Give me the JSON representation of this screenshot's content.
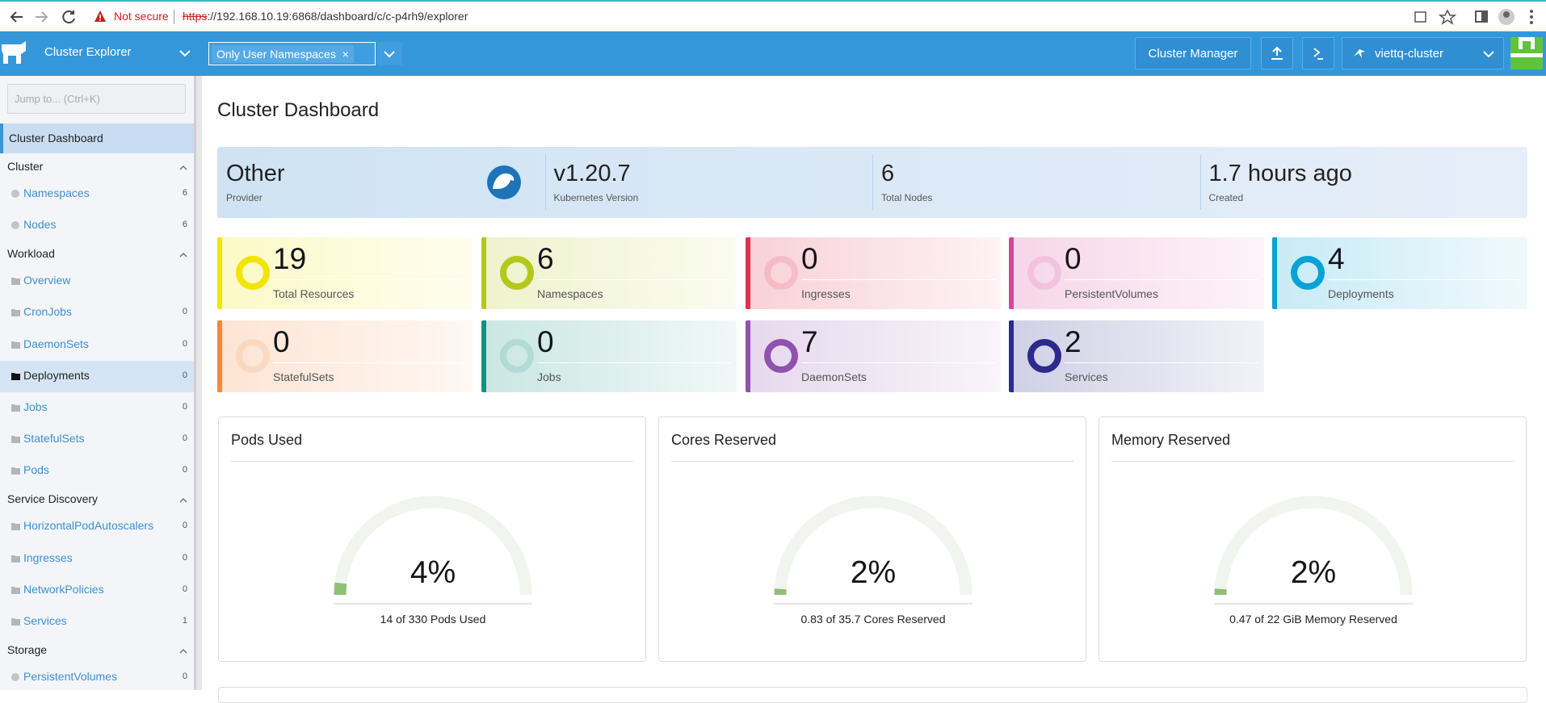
{
  "browser": {
    "security": "Not secure",
    "url_scheme": "https",
    "url_rest": "://192.168.10.19:6868/dashboard/c/c-p4rh9/explorer"
  },
  "header": {
    "product": "Cluster Explorer",
    "namespace_filter": "Only User Namespaces",
    "cluster_manager": "Cluster Manager",
    "cluster": "viettq-cluster"
  },
  "sidebar": {
    "search_placeholder": "Jump to... (Ctrl+K)",
    "active": "Cluster Dashboard",
    "groups": [
      {
        "label": "Cluster",
        "items": [
          {
            "label": "Namespaces",
            "count": 6
          },
          {
            "label": "Nodes",
            "count": 6
          }
        ]
      },
      {
        "label": "Workload",
        "items": [
          {
            "label": "Overview"
          },
          {
            "label": "CronJobs",
            "count": 0
          },
          {
            "label": "DaemonSets",
            "count": 0
          },
          {
            "label": "Deployments",
            "count": 0
          },
          {
            "label": "Jobs",
            "count": 0
          },
          {
            "label": "StatefulSets",
            "count": 0
          },
          {
            "label": "Pods",
            "count": 0
          }
        ]
      },
      {
        "label": "Service Discovery",
        "items": [
          {
            "label": "HorizontalPodAutoscalers",
            "count": 0
          },
          {
            "label": "Ingresses",
            "count": 0
          },
          {
            "label": "NetworkPolicies",
            "count": 0
          },
          {
            "label": "Services",
            "count": 1
          }
        ]
      },
      {
        "label": "Storage",
        "items": [
          {
            "label": "PersistentVolumes",
            "count": 0
          }
        ]
      }
    ]
  },
  "dashboard": {
    "title": "Cluster Dashboard",
    "summary": [
      {
        "value": "Other",
        "label": "Provider"
      },
      {
        "value": "v1.20.7",
        "label": "Kubernetes Version"
      },
      {
        "value": 6,
        "label": "Total Nodes"
      },
      {
        "value": "1.7 hours ago",
        "label": "Created"
      }
    ],
    "tiles": [
      {
        "count": 19,
        "label": "Total Resources",
        "color": "#f2e500"
      },
      {
        "count": 6,
        "label": "Namespaces",
        "color": "#b4c81c"
      },
      {
        "count": 0,
        "label": "Ingresses",
        "color": "#e0304f"
      },
      {
        "count": 0,
        "label": "PersistentVolumes",
        "color": "#d8449a"
      },
      {
        "count": 4,
        "label": "Deployments",
        "color": "#08a2d6"
      },
      {
        "count": 0,
        "label": "StatefulSets",
        "color": "#f5873d"
      },
      {
        "count": 0,
        "label": "Jobs",
        "color": "#11917f"
      },
      {
        "count": 7,
        "label": "DaemonSets",
        "color": "#8f52ad"
      },
      {
        "count": 2,
        "label": "Services",
        "color": "#2c2a8c"
      }
    ],
    "gauges": [
      {
        "title": "Pods Used",
        "percent": {
          "value": 4,
          "label": "4%"
        },
        "caption": "14 of 330 Pods Used"
      },
      {
        "title": "Cores Reserved",
        "percent": {
          "value": 2,
          "label": "2%"
        },
        "caption": "0.83 of 35.7 Cores Reserved"
      },
      {
        "title": "Memory Reserved",
        "percent": {
          "value": 2,
          "label": "2%"
        },
        "caption": "0.47 of 22 GiB Memory Reserved"
      }
    ]
  }
}
